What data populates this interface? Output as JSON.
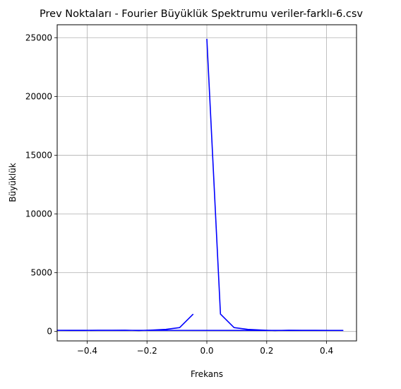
{
  "chart_data": {
    "type": "line",
    "title": "Prev Noktaları - Fourier Büyüklük Spektrumu veriler-farklı-6.csv",
    "xlabel": "Frekans",
    "ylabel": "Büyüklük",
    "xlim": [
      -0.5,
      0.5
    ],
    "ylim": [
      -800,
      26100
    ],
    "xticks": [
      -0.4,
      -0.2,
      0.0,
      0.2,
      0.4
    ],
    "xtick_labels": [
      "−0.4",
      "−0.2",
      "0.0",
      "0.2",
      "0.4"
    ],
    "yticks": [
      0,
      5000,
      10000,
      15000,
      20000,
      25000
    ],
    "ytick_labels": [
      "0",
      "5000",
      "10000",
      "15000",
      "20000",
      "25000"
    ],
    "grid": true,
    "series": [
      {
        "color": "#0000ff",
        "x": [
          0.0,
          0.0455,
          0.0909,
          0.1364,
          0.1818,
          0.2273,
          0.2727,
          0.3182,
          0.3636,
          0.4091,
          0.4545,
          -0.5,
          -0.4545,
          -0.4091,
          -0.3636,
          -0.3182,
          -0.2727,
          -0.2273,
          -0.1818,
          -0.1364,
          -0.0909,
          -0.0455
        ],
        "y": [
          24900,
          1480,
          330,
          180,
          120,
          80,
          110,
          100,
          100,
          90,
          90,
          100,
          90,
          90,
          100,
          100,
          110,
          80,
          120,
          180,
          330,
          1480
        ]
      }
    ]
  }
}
